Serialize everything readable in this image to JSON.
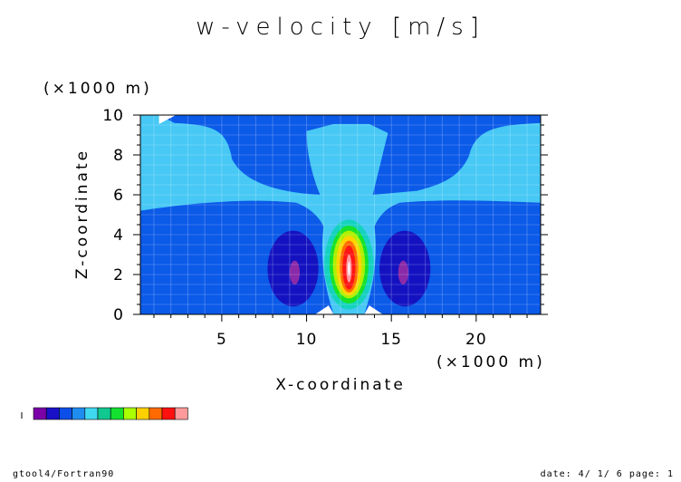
{
  "chart_data": {
    "type": "contour",
    "title": "w-velocity [m/s]",
    "xlabel": "X-coordinate",
    "ylabel": "Z-coordinate",
    "x_unit": "(×1000 m)",
    "y_unit": "(×1000 m)",
    "xlim": [
      0.2,
      23.8
    ],
    "ylim": [
      0,
      10
    ],
    "x_ticks": [
      5,
      10,
      15,
      20
    ],
    "y_ticks": [
      0,
      2,
      4,
      6,
      8,
      10
    ],
    "grid": true,
    "colorbar_levels": [
      "#7b00a8",
      "#1a10c8",
      "#0c4fe8",
      "#1f8cf0",
      "#40d8f0",
      "#10c890",
      "#14e030",
      "#aaff00",
      "#ffd000",
      "#ff6a00",
      "#ff1010",
      "#ff9a9a"
    ],
    "fields": {
      "background": "#0b5ae8",
      "upper_band": "#47c8f5",
      "core_levels": [
        {
          "color": "#14d2bf",
          "cx": 12.5,
          "cz": 2.5,
          "rx": 1.45,
          "rz": 2.25
        },
        {
          "color": "#16e22a",
          "cx": 12.5,
          "cz": 2.5,
          "rx": 1.15,
          "rz": 1.95
        },
        {
          "color": "#aef000",
          "cx": 12.5,
          "cz": 2.5,
          "rx": 0.95,
          "rz": 1.7
        },
        {
          "color": "#ffd400",
          "cx": 12.5,
          "cz": 2.45,
          "rx": 0.75,
          "rz": 1.5
        },
        {
          "color": "#ff6a00",
          "cx": 12.5,
          "cz": 2.4,
          "rx": 0.55,
          "rz": 1.3
        },
        {
          "color": "#ff1616",
          "cx": 12.5,
          "cz": 2.35,
          "rx": 0.38,
          "rz": 1.1
        },
        {
          "color": "#ff9aa0",
          "cx": 12.5,
          "cz": 2.3,
          "rx": 0.16,
          "rz": 0.7
        },
        {
          "color": "#ffffff",
          "cx": 12.5,
          "cz": 2.3,
          "rx": 0.06,
          "rz": 0.35
        }
      ],
      "downdrafts": [
        {
          "color": "#1412c0",
          "cx": 9.2,
          "cz": 2.3,
          "rx": 1.5,
          "rz": 1.9
        },
        {
          "color": "#1412c0",
          "cx": 15.8,
          "cz": 2.3,
          "rx": 1.5,
          "rz": 1.9
        },
        {
          "color": "#8a2aa8",
          "cx": 9.3,
          "cz": 2.1,
          "rx": 0.3,
          "rz": 0.6
        },
        {
          "color": "#8a2aa8",
          "cx": 15.7,
          "cz": 2.1,
          "rx": 0.3,
          "rz": 0.6
        }
      ]
    }
  },
  "footer": {
    "left": "gtool4/Fortran90",
    "right": "date: 4/ 1/ 6 page: 1"
  }
}
